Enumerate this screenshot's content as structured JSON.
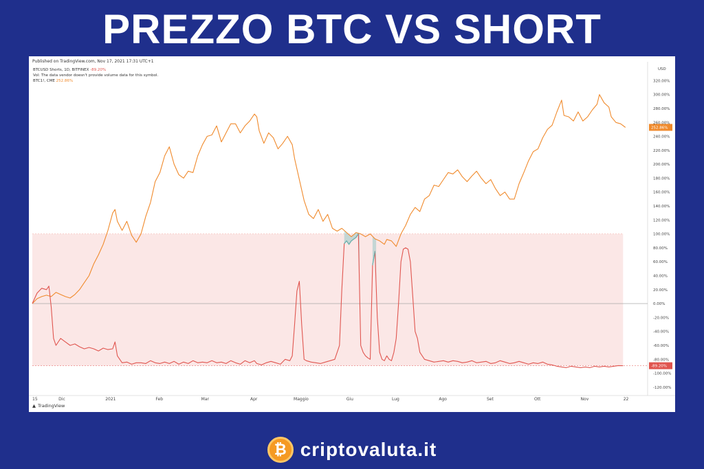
{
  "headline": "PREZZO BTC VS SHORT",
  "published": "Published on TradingView.com, Nov 17, 2021 17:31 UTC+1",
  "legend": {
    "line1_label": "BTCUSD Shorts, 1D, BITFINEX",
    "line1_value": "-89.20%",
    "line2": "Vol: The data vendor doesn't provide volume data for this symbol.",
    "line3_label": "BTC1!, CME",
    "line3_value": "252.86%"
  },
  "tradingview_label": "TradingView",
  "brand_text": "criptovaluta.it",
  "colors": {
    "background": "#1f2f8c",
    "btc_line": "#f08a2c",
    "shorts_line": "#e0554f",
    "shorts_fill": "#f8d3d1",
    "overlap_fill": "#5fb8b4"
  },
  "chart_data": {
    "type": "line",
    "y_unit": "%",
    "ylim": [
      -130,
      345
    ],
    "y_ticks": [
      "320.00%",
      "300.00%",
      "280.00%",
      "260.00%",
      "240.00%",
      "220.00%",
      "200.00%",
      "180.00%",
      "160.00%",
      "140.00%",
      "120.00%",
      "100.00%",
      "80.00%",
      "60.00%",
      "40.00%",
      "20.00%",
      "0.00%",
      "-20.00%",
      "-40.00%",
      "-60.00%",
      "-80.00%",
      "-100.00%",
      "-120.00%"
    ],
    "currency_label": "USD",
    "x_tick_labels": [
      "15",
      "Dic",
      "2021",
      "Feb",
      "Mar",
      "Apr",
      "Maggio",
      "Giu",
      "Lug",
      "Ago",
      "Set",
      "Ott",
      "Nov",
      "22"
    ],
    "last_values": {
      "btc": "252.86%",
      "shorts": "-89.20%"
    },
    "series": [
      {
        "name": "BTC1!, CME",
        "points": [
          [
            0,
            0
          ],
          [
            4,
            7
          ],
          [
            8,
            10
          ],
          [
            12,
            12
          ],
          [
            16,
            10
          ],
          [
            20,
            16
          ],
          [
            24,
            13
          ],
          [
            28,
            10
          ],
          [
            32,
            8
          ],
          [
            36,
            13
          ],
          [
            40,
            20
          ],
          [
            44,
            30
          ],
          [
            48,
            40
          ],
          [
            52,
            57
          ],
          [
            56,
            70
          ],
          [
            60,
            85
          ],
          [
            64,
            105
          ],
          [
            68,
            130
          ],
          [
            70,
            135
          ],
          [
            72,
            118
          ],
          [
            76,
            105
          ],
          [
            80,
            118
          ],
          [
            84,
            98
          ],
          [
            88,
            88
          ],
          [
            92,
            100
          ],
          [
            96,
            125
          ],
          [
            100,
            145
          ],
          [
            104,
            175
          ],
          [
            108,
            188
          ],
          [
            112,
            212
          ],
          [
            116,
            225
          ],
          [
            120,
            200
          ],
          [
            124,
            185
          ],
          [
            128,
            180
          ],
          [
            132,
            190
          ],
          [
            136,
            188
          ],
          [
            140,
            212
          ],
          [
            144,
            228
          ],
          [
            148,
            240
          ],
          [
            152,
            242
          ],
          [
            156,
            255
          ],
          [
            160,
            232
          ],
          [
            164,
            245
          ],
          [
            168,
            258
          ],
          [
            172,
            258
          ],
          [
            176,
            245
          ],
          [
            180,
            255
          ],
          [
            184,
            262
          ],
          [
            188,
            272
          ],
          [
            190,
            268
          ],
          [
            192,
            248
          ],
          [
            196,
            230
          ],
          [
            200,
            245
          ],
          [
            204,
            238
          ],
          [
            208,
            222
          ],
          [
            212,
            230
          ],
          [
            216,
            240
          ],
          [
            220,
            228
          ],
          [
            222,
            208
          ],
          [
            226,
            178
          ],
          [
            230,
            148
          ],
          [
            234,
            128
          ],
          [
            238,
            122
          ],
          [
            242,
            135
          ],
          [
            246,
            118
          ],
          [
            250,
            128
          ],
          [
            254,
            108
          ],
          [
            258,
            104
          ],
          [
            262,
            108
          ],
          [
            266,
            102
          ],
          [
            270,
            96
          ],
          [
            274,
            102
          ],
          [
            278,
            100
          ],
          [
            282,
            96
          ],
          [
            286,
            100
          ],
          [
            290,
            93
          ],
          [
            294,
            90
          ],
          [
            298,
            85
          ],
          [
            300,
            92
          ],
          [
            304,
            90
          ],
          [
            308,
            82
          ],
          [
            312,
            100
          ],
          [
            316,
            112
          ],
          [
            320,
            128
          ],
          [
            324,
            138
          ],
          [
            328,
            132
          ],
          [
            332,
            150
          ],
          [
            336,
            155
          ],
          [
            340,
            170
          ],
          [
            344,
            168
          ],
          [
            348,
            178
          ],
          [
            352,
            188
          ],
          [
            356,
            186
          ],
          [
            360,
            192
          ],
          [
            364,
            182
          ],
          [
            368,
            175
          ],
          [
            372,
            183
          ],
          [
            376,
            190
          ],
          [
            380,
            180
          ],
          [
            384,
            172
          ],
          [
            388,
            178
          ],
          [
            392,
            165
          ],
          [
            396,
            155
          ],
          [
            400,
            160
          ],
          [
            404,
            150
          ],
          [
            408,
            150
          ],
          [
            412,
            172
          ],
          [
            416,
            188
          ],
          [
            420,
            205
          ],
          [
            424,
            218
          ],
          [
            428,
            222
          ],
          [
            432,
            238
          ],
          [
            436,
            250
          ],
          [
            440,
            256
          ],
          [
            444,
            275
          ],
          [
            448,
            292
          ],
          [
            450,
            270
          ],
          [
            454,
            268
          ],
          [
            458,
            262
          ],
          [
            462,
            275
          ],
          [
            466,
            262
          ],
          [
            470,
            268
          ],
          [
            474,
            278
          ],
          [
            478,
            286
          ],
          [
            480,
            300
          ],
          [
            484,
            288
          ],
          [
            488,
            282
          ],
          [
            490,
            268
          ],
          [
            494,
            260
          ],
          [
            498,
            258
          ],
          [
            502,
            252.86
          ]
        ]
      },
      {
        "name": "BTCUSD Shorts, 1D, BITFINEX",
        "points": [
          [
            0,
            0
          ],
          [
            4,
            15
          ],
          [
            8,
            22
          ],
          [
            12,
            20
          ],
          [
            14,
            25
          ],
          [
            16,
            -5
          ],
          [
            18,
            -50
          ],
          [
            20,
            -60
          ],
          [
            24,
            -50
          ],
          [
            28,
            -55
          ],
          [
            32,
            -60
          ],
          [
            36,
            -58
          ],
          [
            40,
            -62
          ],
          [
            44,
            -65
          ],
          [
            48,
            -63
          ],
          [
            52,
            -65
          ],
          [
            56,
            -68
          ],
          [
            60,
            -64
          ],
          [
            64,
            -66
          ],
          [
            68,
            -65
          ],
          [
            70,
            -55
          ],
          [
            72,
            -75
          ],
          [
            76,
            -85
          ],
          [
            80,
            -84
          ],
          [
            84,
            -87
          ],
          [
            88,
            -85
          ],
          [
            92,
            -85
          ],
          [
            96,
            -86
          ],
          [
            100,
            -82
          ],
          [
            104,
            -85
          ],
          [
            108,
            -86
          ],
          [
            112,
            -84
          ],
          [
            116,
            -86
          ],
          [
            120,
            -83
          ],
          [
            124,
            -87
          ],
          [
            128,
            -84
          ],
          [
            132,
            -86
          ],
          [
            136,
            -82
          ],
          [
            140,
            -85
          ],
          [
            144,
            -84
          ],
          [
            148,
            -85
          ],
          [
            152,
            -82
          ],
          [
            156,
            -85
          ],
          [
            160,
            -84
          ],
          [
            164,
            -86
          ],
          [
            168,
            -82
          ],
          [
            172,
            -85
          ],
          [
            176,
            -87
          ],
          [
            180,
            -82
          ],
          [
            184,
            -85
          ],
          [
            188,
            -82
          ],
          [
            190,
            -86
          ],
          [
            194,
            -88
          ],
          [
            198,
            -85
          ],
          [
            202,
            -83
          ],
          [
            206,
            -85
          ],
          [
            210,
            -87
          ],
          [
            214,
            -80
          ],
          [
            218,
            -82
          ],
          [
            220,
            -75
          ],
          [
            222,
            -30
          ],
          [
            224,
            18
          ],
          [
            226,
            32
          ],
          [
            228,
            -30
          ],
          [
            230,
            -80
          ],
          [
            232,
            -82
          ],
          [
            236,
            -84
          ],
          [
            240,
            -85
          ],
          [
            244,
            -86
          ],
          [
            248,
            -84
          ],
          [
            252,
            -82
          ],
          [
            256,
            -80
          ],
          [
            258,
            -70
          ],
          [
            260,
            -60
          ],
          [
            262,
            20
          ],
          [
            264,
            86
          ],
          [
            266,
            90
          ],
          [
            268,
            85
          ],
          [
            270,
            90
          ],
          [
            274,
            95
          ],
          [
            276,
            100
          ],
          [
            278,
            -60
          ],
          [
            280,
            -70
          ],
          [
            282,
            -75
          ],
          [
            284,
            -78
          ],
          [
            286,
            -80
          ],
          [
            288,
            55
          ],
          [
            290,
            75
          ],
          [
            292,
            -20
          ],
          [
            294,
            -70
          ],
          [
            296,
            -80
          ],
          [
            298,
            -82
          ],
          [
            300,
            -75
          ],
          [
            302,
            -80
          ],
          [
            304,
            -82
          ],
          [
            306,
            -70
          ],
          [
            308,
            -50
          ],
          [
            310,
            0
          ],
          [
            312,
            60
          ],
          [
            314,
            78
          ],
          [
            316,
            80
          ],
          [
            318,
            78
          ],
          [
            320,
            60
          ],
          [
            322,
            10
          ],
          [
            324,
            -40
          ],
          [
            326,
            -50
          ],
          [
            328,
            -70
          ],
          [
            332,
            -80
          ],
          [
            336,
            -82
          ],
          [
            340,
            -84
          ],
          [
            344,
            -83
          ],
          [
            348,
            -82
          ],
          [
            352,
            -84
          ],
          [
            356,
            -82
          ],
          [
            360,
            -83
          ],
          [
            364,
            -85
          ],
          [
            368,
            -84
          ],
          [
            372,
            -82
          ],
          [
            376,
            -85
          ],
          [
            380,
            -84
          ],
          [
            384,
            -83
          ],
          [
            388,
            -86
          ],
          [
            392,
            -85
          ],
          [
            396,
            -82
          ],
          [
            400,
            -84
          ],
          [
            404,
            -86
          ],
          [
            408,
            -85
          ],
          [
            412,
            -83
          ],
          [
            416,
            -85
          ],
          [
            420,
            -87
          ],
          [
            424,
            -85
          ],
          [
            428,
            -86
          ],
          [
            432,
            -84
          ],
          [
            436,
            -87
          ],
          [
            440,
            -88
          ],
          [
            444,
            -90
          ],
          [
            448,
            -91
          ],
          [
            452,
            -92
          ],
          [
            456,
            -90
          ],
          [
            460,
            -91
          ],
          [
            464,
            -92
          ],
          [
            468,
            -91
          ],
          [
            472,
            -92
          ],
          [
            476,
            -90
          ],
          [
            480,
            -91
          ],
          [
            484,
            -90
          ],
          [
            488,
            -91
          ],
          [
            492,
            -90
          ],
          [
            496,
            -89
          ],
          [
            500,
            -89.2
          ]
        ]
      }
    ]
  }
}
